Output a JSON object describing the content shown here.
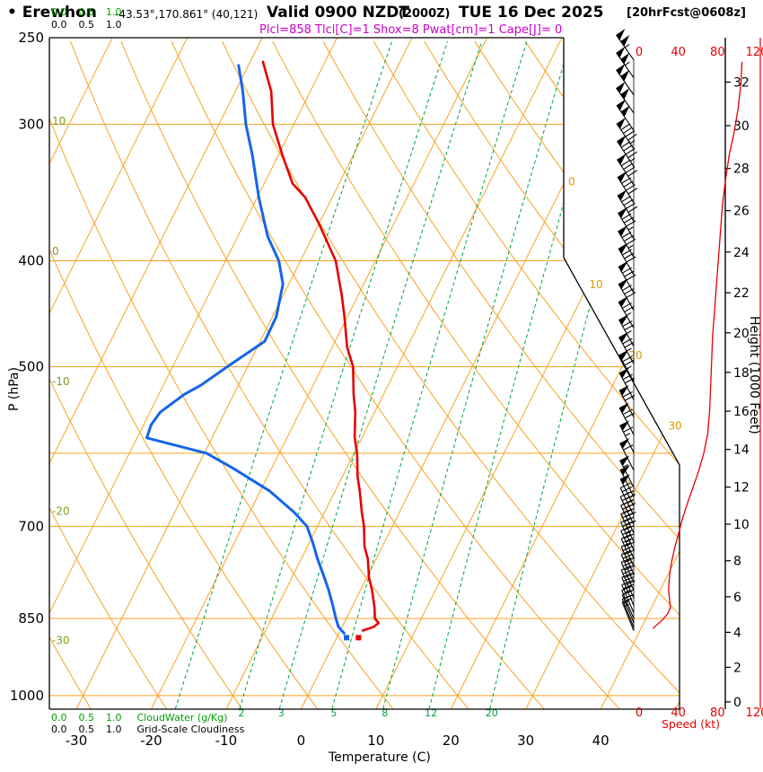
{
  "header": {
    "station": "• Erewhon",
    "coords": "-43.53°,170.861° (40,121)",
    "valid": "Valid 0900 NZDT",
    "valid_z": "(2000Z)",
    "date": "TUE 16 Dec 2025",
    "fcst": "[20hrFcst@0608z]",
    "indices": "Plcl=858 Tlcl[C]=1 Shox=8 Pwat[cm]=1 Cape[J]= 0"
  },
  "scales": {
    "values": [
      "0.0",
      "0.5",
      "1.0"
    ],
    "cloudwater_label": "CloudWater (g/Kg)",
    "cloudiness_label": "Grid-Scale Cloudiness"
  },
  "colors": {
    "grid": "#f7a320",
    "mixing": "#00a33c",
    "temp": "#e60000",
    "dewpoint": "#1565e8",
    "indices": "#cc00cc",
    "speed": "#e60000",
    "cloud_green": "#00a000",
    "adiabat_label": "#7d9e1e",
    "isotherm_label": "#dd9900",
    "frame": "#000000"
  },
  "chart_data": {
    "type": "line",
    "subtype": "skew-t-log-p-sounding",
    "pressure_axis": {
      "label": "P (hPa)",
      "ticks": [
        250,
        300,
        400,
        500,
        700,
        850,
        1000
      ],
      "gridlines": [
        250,
        300,
        400,
        500,
        600,
        700,
        850,
        1000
      ],
      "range": [
        250,
        1030
      ]
    },
    "temperature_axis": {
      "label": "Temperature (C)",
      "ticks": [
        -30,
        -20,
        -10,
        0,
        10,
        20,
        30,
        40
      ]
    },
    "height_axis": {
      "label": "Height (1000 Feet)",
      "ticks": [
        0,
        2,
        4,
        6,
        8,
        10,
        12,
        14,
        16,
        18,
        20,
        22,
        24,
        26,
        28,
        30,
        32
      ]
    },
    "speed_axis": {
      "label": "Speed (kt)",
      "ticks": [
        0,
        40,
        80,
        120
      ],
      "max": 120
    },
    "grid_lines": {
      "isotherm_step": 10,
      "isotherm_labels": [
        0,
        10,
        20,
        30
      ],
      "dry_adiabat_step": 10,
      "dry_adiabat_labels": [
        10,
        0,
        -10,
        -20,
        -30
      ],
      "mixing_ratio_gkg": [
        1,
        2,
        3,
        5,
        8,
        12,
        20
      ],
      "mixing_ratio_labels": [
        2,
        3,
        5,
        8,
        12,
        20
      ]
    },
    "series": [
      {
        "name": "temperature",
        "color_key": "temp",
        "points": [
          [
            263,
            -48.3
          ],
          [
            270,
            -47.0
          ],
          [
            280,
            -45.2
          ],
          [
            300,
            -42.8
          ],
          [
            320,
            -39.5
          ],
          [
            340,
            -36.2
          ],
          [
            350,
            -33.6
          ],
          [
            370,
            -30.0
          ],
          [
            400,
            -25.3
          ],
          [
            430,
            -22.2
          ],
          [
            450,
            -20.4
          ],
          [
            480,
            -18.0
          ],
          [
            500,
            -15.9
          ],
          [
            530,
            -14.0
          ],
          [
            550,
            -12.6
          ],
          [
            580,
            -11.0
          ],
          [
            600,
            -9.6
          ],
          [
            630,
            -8.0
          ],
          [
            650,
            -6.7
          ],
          [
            680,
            -5.0
          ],
          [
            700,
            -3.8
          ],
          [
            730,
            -2.4
          ],
          [
            750,
            -1.1
          ],
          [
            780,
            0.3
          ],
          [
            800,
            1.5
          ],
          [
            830,
            3.0
          ],
          [
            850,
            3.8
          ],
          [
            858,
            4.6
          ],
          [
            865,
            4.2
          ],
          [
            872,
            3.0
          ]
        ]
      },
      {
        "name": "dewpoint",
        "color_key": "dewpoint",
        "points": [
          [
            265,
            -51.3
          ],
          [
            280,
            -49.0
          ],
          [
            300,
            -46.4
          ],
          [
            320,
            -43.5
          ],
          [
            350,
            -39.8
          ],
          [
            380,
            -36.0
          ],
          [
            400,
            -32.9
          ],
          [
            420,
            -30.8
          ],
          [
            450,
            -29.5
          ],
          [
            474,
            -29.4
          ],
          [
            500,
            -32.7
          ],
          [
            520,
            -35.0
          ],
          [
            530,
            -36.6
          ],
          [
            550,
            -38.6
          ],
          [
            565,
            -39.0
          ],
          [
            581,
            -38.7
          ],
          [
            600,
            -29.7
          ],
          [
            620,
            -25.0
          ],
          [
            650,
            -18.7
          ],
          [
            680,
            -14.0
          ],
          [
            700,
            -11.4
          ],
          [
            725,
            -9.5
          ],
          [
            750,
            -7.8
          ],
          [
            775,
            -6.0
          ],
          [
            800,
            -4.3
          ],
          [
            825,
            -2.8
          ],
          [
            850,
            -1.4
          ],
          [
            865,
            -0.5
          ],
          [
            877,
            0.7
          ]
        ]
      }
    ],
    "surface_markers": [
      {
        "series": "temperature",
        "p": 885,
        "t": 2.9
      },
      {
        "series": "dewpoint",
        "p": 885,
        "t": 1.3
      }
    ],
    "wind_speed_profile": [
      [
        263,
        105
      ],
      [
        275,
        104
      ],
      [
        290,
        101
      ],
      [
        305,
        97
      ],
      [
        320,
        92
      ],
      [
        338,
        88
      ],
      [
        356,
        85
      ],
      [
        376,
        83
      ],
      [
        398,
        81
      ],
      [
        420,
        79
      ],
      [
        444,
        77
      ],
      [
        468,
        75
      ],
      [
        494,
        74
      ],
      [
        520,
        73
      ],
      [
        548,
        72
      ],
      [
        576,
        70
      ],
      [
        600,
        66
      ],
      [
        622,
        61
      ],
      [
        645,
        55
      ],
      [
        668,
        49
      ],
      [
        690,
        44
      ],
      [
        712,
        40
      ],
      [
        734,
        36
      ],
      [
        756,
        33
      ],
      [
        778,
        31
      ],
      [
        800,
        30
      ],
      [
        816,
        31
      ],
      [
        830,
        32
      ],
      [
        842,
        29
      ],
      [
        852,
        24
      ],
      [
        860,
        19
      ],
      [
        868,
        14
      ]
    ],
    "wind_barbs": [
      [
        262,
        104,
        325
      ],
      [
        272,
        103,
        325
      ],
      [
        282,
        102,
        325
      ],
      [
        293,
        101,
        325
      ],
      [
        304,
        99,
        326
      ],
      [
        316,
        97,
        326
      ],
      [
        328,
        95,
        327
      ],
      [
        341,
        92,
        327
      ],
      [
        354,
        90,
        328
      ],
      [
        368,
        88,
        328
      ],
      [
        382,
        86,
        329
      ],
      [
        397,
        84,
        329
      ],
      [
        412,
        82,
        330
      ],
      [
        428,
        80,
        330
      ],
      [
        444,
        78,
        330
      ],
      [
        461,
        76,
        330
      ],
      [
        479,
        75,
        331
      ],
      [
        497,
        74,
        331
      ],
      [
        516,
        73,
        331
      ],
      [
        536,
        72,
        332
      ],
      [
        556,
        70,
        332
      ],
      [
        577,
        68,
        332
      ],
      [
        599,
        65,
        333
      ],
      [
        622,
        60,
        333
      ],
      [
        645,
        55,
        333
      ],
      [
        658,
        52,
        334
      ],
      [
        671,
        49,
        334
      ],
      [
        684,
        47,
        334
      ],
      [
        697,
        44,
        334
      ],
      [
        710,
        41,
        335
      ],
      [
        723,
        38,
        335
      ],
      [
        736,
        36,
        335
      ],
      [
        749,
        34,
        335
      ],
      [
        762,
        32,
        336
      ],
      [
        775,
        31,
        336
      ],
      [
        788,
        30,
        336
      ],
      [
        801,
        29,
        336
      ],
      [
        814,
        29,
        336
      ],
      [
        827,
        28,
        337
      ],
      [
        840,
        25,
        337
      ],
      [
        850,
        22,
        337
      ],
      [
        858,
        19,
        338
      ],
      [
        866,
        16,
        338
      ],
      [
        872,
        13,
        338
      ]
    ]
  }
}
